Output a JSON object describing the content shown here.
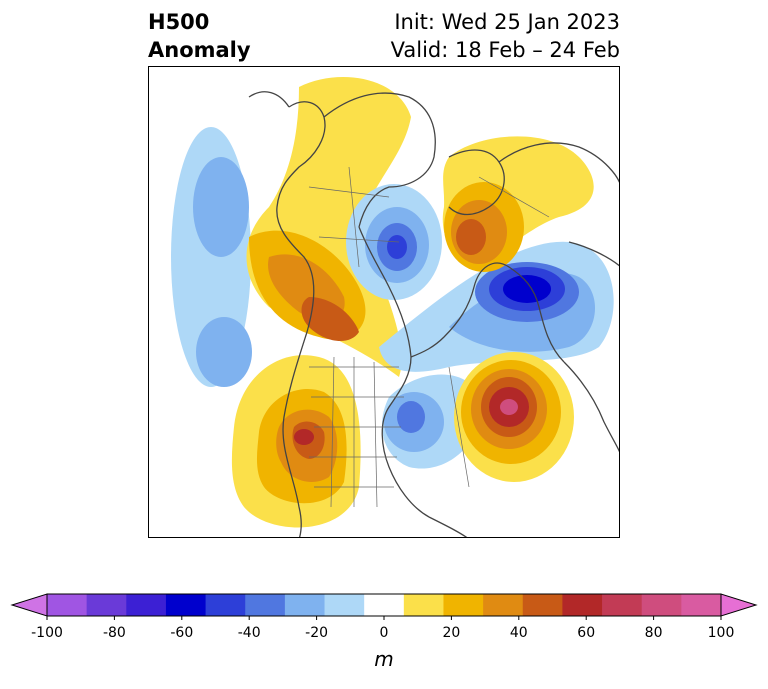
{
  "header": {
    "title_line1": "H500",
    "title_line2": "Anomaly",
    "init_text": "Init: Wed 25 Jan 2023",
    "valid_text": "Valid: 18 Feb – 24 Feb"
  },
  "colorbar": {
    "unit": "m",
    "min": -100,
    "max": 100,
    "step": 10,
    "tick_labels": [
      "-100",
      "-80",
      "-60",
      "-40",
      "-20",
      "0",
      "20",
      "40",
      "60",
      "80",
      "100"
    ],
    "colors": [
      "#cf73e5",
      "#a055e3",
      "#6a3ad8",
      "#3c20d4",
      "#0000cd",
      "#2d3fd8",
      "#5077e0",
      "#7fb2ef",
      "#aed8f7",
      "#ffffff",
      "#fbe04a",
      "#f0b400",
      "#e08b12",
      "#c85a16",
      "#b22828",
      "#c23b55",
      "#cf4d7e",
      "#d95ba1",
      "#e66fd4"
    ]
  }
}
